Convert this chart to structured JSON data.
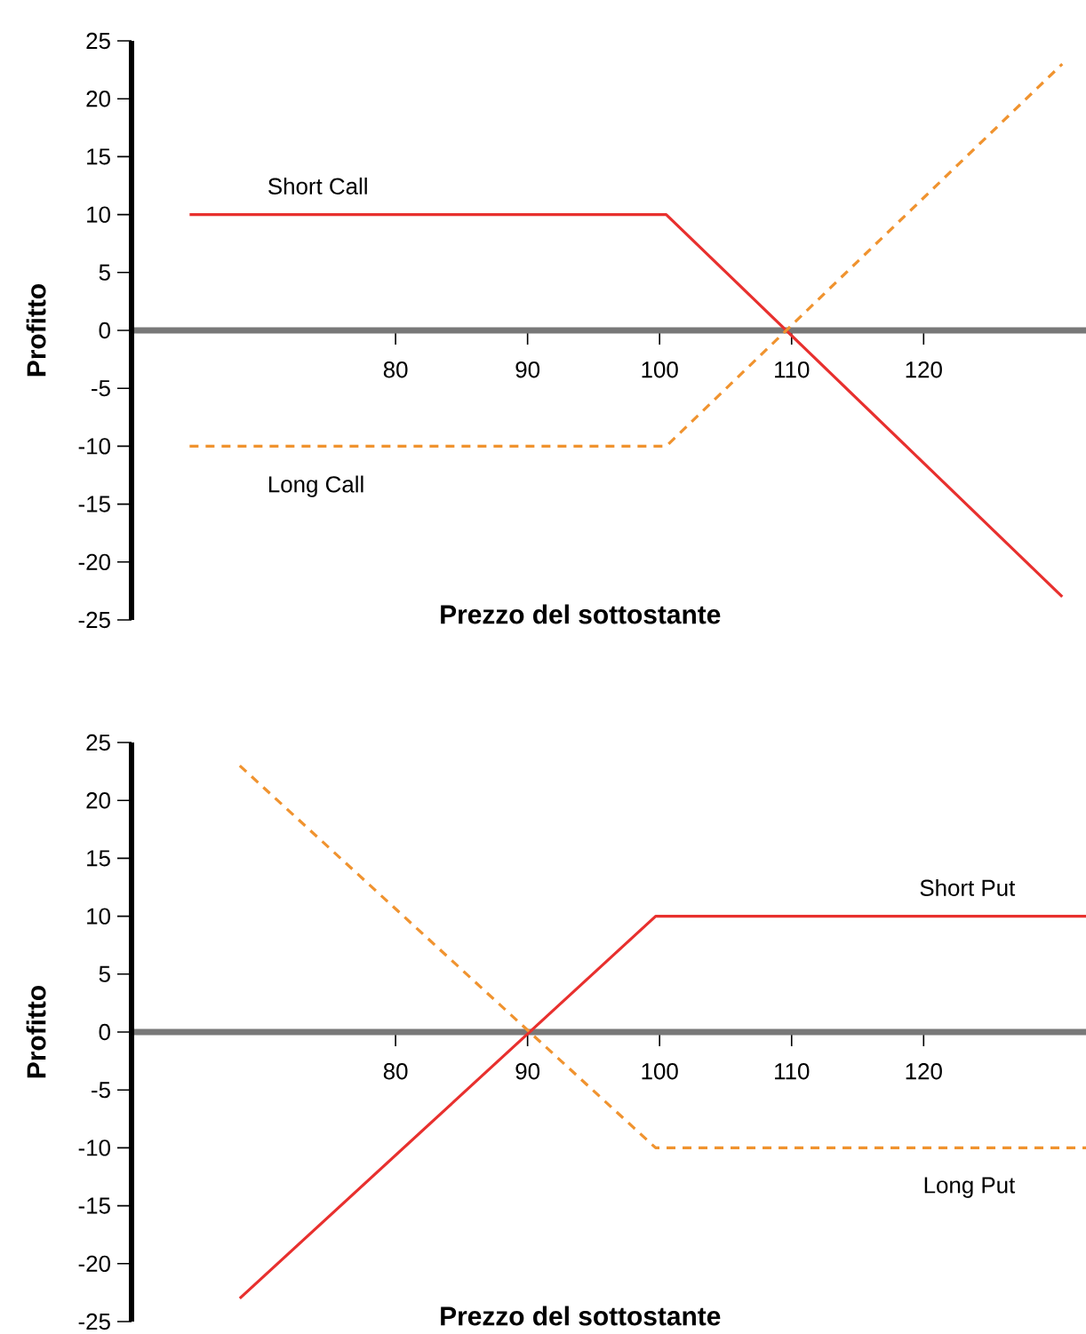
{
  "chart_data": [
    {
      "type": "line",
      "xlabel": "Prezzo del sottostante",
      "ylabel": "Profitto",
      "xlim": [
        60,
        132.3
      ],
      "ylim": [
        -25,
        25
      ],
      "xticks": [
        80,
        90,
        100,
        110,
        120
      ],
      "yticks": [
        -25,
        -20,
        -15,
        -10,
        -5,
        0,
        5,
        10,
        15,
        20,
        25
      ],
      "grid": false,
      "legend": false,
      "marker": "none",
      "series": [
        {
          "name": "Short Call",
          "color": "#e8302e",
          "line_style": "solid",
          "x": [
            64.4,
            100.5,
            130.5
          ],
          "values": [
            10,
            10,
            -23
          ]
        },
        {
          "name": "Long Call",
          "color": "#f0932f",
          "line_style": "dashed",
          "x": [
            64.4,
            100.5,
            130.5
          ],
          "values": [
            -10,
            -10,
            23
          ]
        }
      ]
    },
    {
      "type": "line",
      "xlabel": "Prezzo del sottostante",
      "ylabel": "Profitto",
      "xlim": [
        60,
        132.3
      ],
      "ylim": [
        -25,
        25
      ],
      "xticks": [
        80,
        90,
        100,
        110,
        120
      ],
      "yticks": [
        -25,
        -20,
        -15,
        -10,
        -5,
        0,
        5,
        10,
        15,
        20,
        25
      ],
      "grid": false,
      "legend": false,
      "marker": "none",
      "series": [
        {
          "name": "Short Put",
          "color": "#e8302e",
          "line_style": "solid",
          "x": [
            68.2,
            99.7,
            132.3
          ],
          "values": [
            -23,
            10,
            10
          ]
        },
        {
          "name": "Long Put",
          "color": "#f0932f",
          "line_style": "dashed",
          "x": [
            68.2,
            99.7,
            132.3
          ],
          "values": [
            23,
            -10,
            -10
          ]
        }
      ]
    }
  ]
}
